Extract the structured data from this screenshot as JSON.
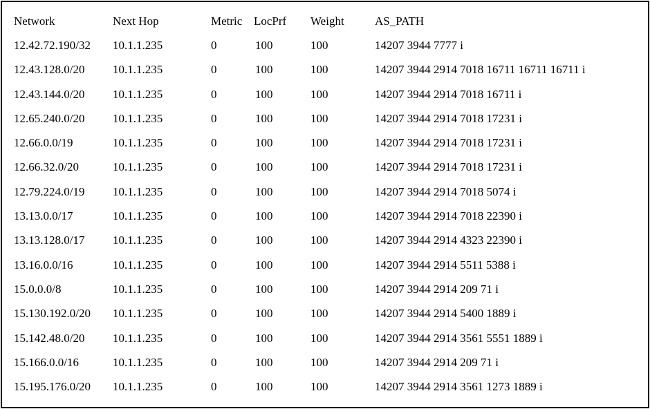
{
  "table": {
    "headers": {
      "network": "Network",
      "next_hop": "Next Hop",
      "metric": "Metric",
      "locprf": "LocPrf",
      "weight": "Weight",
      "as_path": "AS_PATH"
    },
    "rows": [
      {
        "network": "12.42.72.190/32",
        "next_hop": "10.1.1.235",
        "metric": "0",
        "locprf": "100",
        "weight": "100",
        "as_path": "14207 3944 7777 i"
      },
      {
        "network": "12.43.128.0/20",
        "next_hop": "10.1.1.235",
        "metric": "0",
        "locprf": "100",
        "weight": "100",
        "as_path": "14207 3944 2914 7018 16711 16711 16711 i"
      },
      {
        "network": "12.43.144.0/20",
        "next_hop": "10.1.1.235",
        "metric": "0",
        "locprf": "100",
        "weight": "100",
        "as_path": "14207 3944 2914 7018 16711 i"
      },
      {
        "network": "12.65.240.0/20",
        "next_hop": "10.1.1.235",
        "metric": "0",
        "locprf": "100",
        "weight": "100",
        "as_path": "14207 3944 2914 7018 17231 i"
      },
      {
        "network": "12.66.0.0/19",
        "next_hop": "10.1.1.235",
        "metric": "0",
        "locprf": "100",
        "weight": "100",
        "as_path": "14207 3944 2914 7018 17231 i"
      },
      {
        "network": "12.66.32.0/20",
        "next_hop": "10.1.1.235",
        "metric": "0",
        "locprf": "100",
        "weight": "100",
        "as_path": "14207 3944 2914 7018 17231 i"
      },
      {
        "network": "12.79.224.0/19",
        "next_hop": "10.1.1.235",
        "metric": "0",
        "locprf": "100",
        "weight": "100",
        "as_path": "14207 3944 2914 7018 5074 i"
      },
      {
        "network": "13.13.0.0/17",
        "next_hop": "10.1.1.235",
        "metric": "0",
        "locprf": "100",
        "weight": "100",
        "as_path": "14207 3944 2914 7018 22390 i"
      },
      {
        "network": "13.13.128.0/17",
        "next_hop": "10.1.1.235",
        "metric": "0",
        "locprf": "100",
        "weight": "100",
        "as_path": "14207 3944 2914 4323 22390 i"
      },
      {
        "network": "13.16.0.0/16",
        "next_hop": "10.1.1.235",
        "metric": "0",
        "locprf": "100",
        "weight": "100",
        "as_path": "14207 3944 2914 5511 5388 i"
      },
      {
        "network": "15.0.0.0/8",
        "next_hop": "10.1.1.235",
        "metric": "0",
        "locprf": "100",
        "weight": "100",
        "as_path": "14207 3944 2914 209 71 i"
      },
      {
        "network": "15.130.192.0/20",
        "next_hop": "10.1.1.235",
        "metric": "0",
        "locprf": "100",
        "weight": "100",
        "as_path": "14207 3944 2914 5400 1889 i"
      },
      {
        "network": "15.142.48.0/20",
        "next_hop": "10.1.1.235",
        "metric": "0",
        "locprf": "100",
        "weight": "100",
        "as_path": "14207 3944 2914 3561 5551 1889 i"
      },
      {
        "network": "15.166.0.0/16",
        "next_hop": "10.1.1.235",
        "metric": "0",
        "locprf": "100",
        "weight": "100",
        "as_path": "14207 3944 2914 209 71 i"
      },
      {
        "network": "15.195.176.0/20",
        "next_hop": "10.1.1.235",
        "metric": "0",
        "locprf": "100",
        "weight": "100",
        "as_path": "14207 3944 2914 3561 1273 1889 i"
      }
    ]
  }
}
